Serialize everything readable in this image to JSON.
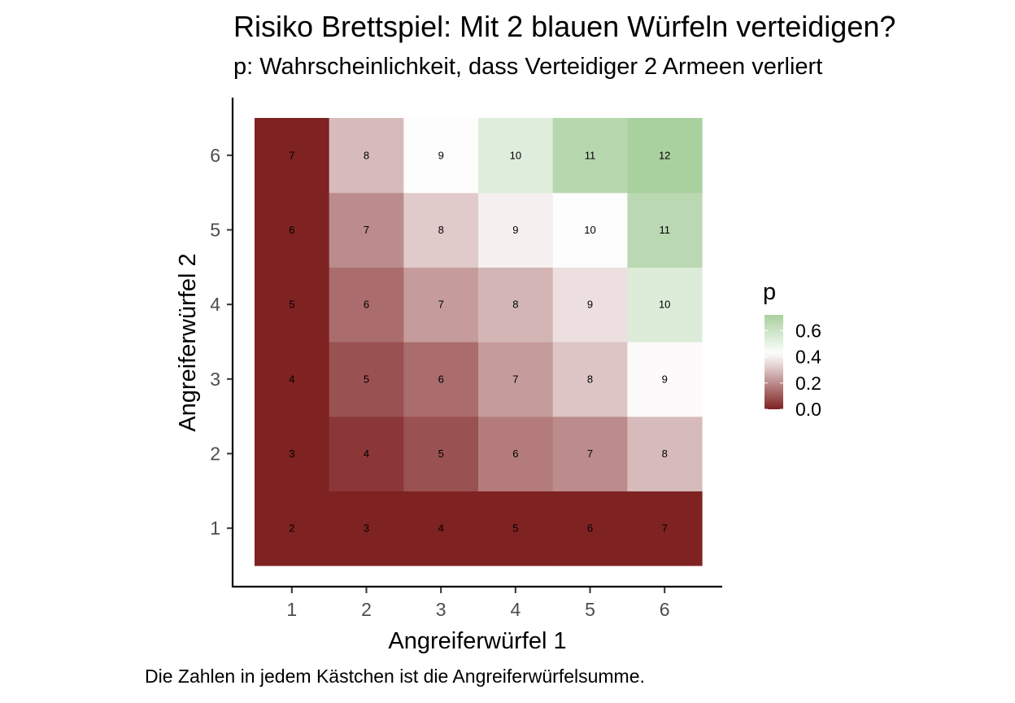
{
  "title": "Risiko  Brettspiel: Mit 2 blauen Würfeln verteidigen?",
  "subtitle": "p: Wahrscheinlichkeit, dass Verteidiger 2 Armeen verliert",
  "caption": "Die Zahlen in jedem Kästchen ist die Angreiferwürfelsumme.",
  "colors": {
    "low": "#7f2222",
    "mid": "#ffffff",
    "high": "#a9d09f",
    "axis": "#000000",
    "tick_text": "#4d4d4d"
  },
  "chart_data": {
    "type": "heatmap",
    "xlabel": "Angreiferwürfel 1",
    "ylabel": "Angreiferwürfel 2",
    "x": [
      1,
      2,
      3,
      4,
      5,
      6
    ],
    "y": [
      1,
      2,
      3,
      4,
      5,
      6
    ],
    "x_tick_labels": [
      "1",
      "2",
      "3",
      "4",
      "5",
      "6"
    ],
    "y_tick_labels": [
      "1",
      "2",
      "3",
      "4",
      "5",
      "6"
    ],
    "p": [
      [
        0.0,
        0.0,
        0.0,
        0.0,
        0.0,
        0.0
      ],
      [
        0.0,
        0.04,
        0.09,
        0.17,
        0.2,
        0.29
      ],
      [
        0.0,
        0.09,
        0.14,
        0.23,
        0.31,
        0.41
      ],
      [
        0.0,
        0.14,
        0.23,
        0.28,
        0.36,
        0.54
      ],
      [
        0.0,
        0.2,
        0.32,
        0.39,
        0.43,
        0.66
      ],
      [
        0.0,
        0.29,
        0.43,
        0.53,
        0.67,
        0.72
      ]
    ],
    "cell_labels": [
      [
        "2",
        "3",
        "4",
        "5",
        "6",
        "7"
      ],
      [
        "3",
        "4",
        "5",
        "6",
        "7",
        "8"
      ],
      [
        "4",
        "5",
        "6",
        "7",
        "8",
        "9"
      ],
      [
        "5",
        "6",
        "7",
        "8",
        "9",
        "10"
      ],
      [
        "6",
        "7",
        "8",
        "9",
        "10",
        "11"
      ],
      [
        "7",
        "8",
        "9",
        "10",
        "11",
        "12"
      ]
    ],
    "legend": {
      "title": "p",
      "placement": "right",
      "breaks": [
        0.0,
        0.2,
        0.4,
        0.6
      ],
      "break_labels": [
        "0.0",
        "0.2",
        "0.4",
        "0.6"
      ],
      "range": [
        0.0,
        0.72
      ],
      "midpoint": 0.42
    },
    "grid": false
  }
}
